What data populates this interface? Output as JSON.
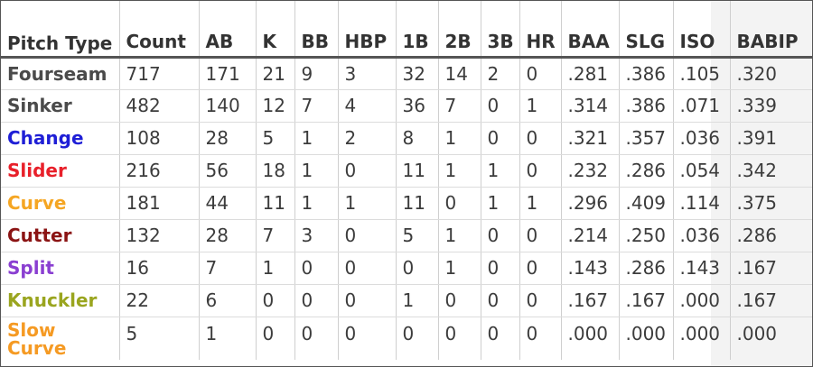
{
  "chart_data": {
    "type": "table",
    "columns": [
      "Pitch Type",
      "Count",
      "AB",
      "K",
      "BB",
      "HBP",
      "1B",
      "2B",
      "3B",
      "HR",
      "BAA",
      "SLG",
      "ISO",
      "BABIP"
    ],
    "rows": [
      {
        "pitch": "Fourseam",
        "color": "#4a4a4a",
        "values": [
          "717",
          "171",
          "21",
          "9",
          "3",
          "32",
          "14",
          "2",
          "0",
          ".281",
          ".386",
          ".105",
          ".320"
        ]
      },
      {
        "pitch": "Sinker",
        "color": "#4a4a4a",
        "values": [
          "482",
          "140",
          "12",
          "7",
          "4",
          "36",
          "7",
          "0",
          "1",
          ".314",
          ".386",
          ".071",
          ".339"
        ]
      },
      {
        "pitch": "Change",
        "color": "#1f1fd6",
        "values": [
          "108",
          "28",
          "5",
          "1",
          "2",
          "8",
          "1",
          "0",
          "0",
          ".321",
          ".357",
          ".036",
          ".391"
        ]
      },
      {
        "pitch": "Slider",
        "color": "#e8202a",
        "values": [
          "216",
          "56",
          "18",
          "1",
          "0",
          "11",
          "1",
          "1",
          "0",
          ".232",
          ".286",
          ".054",
          ".342"
        ]
      },
      {
        "pitch": "Curve",
        "color": "#f5a623",
        "values": [
          "181",
          "44",
          "11",
          "1",
          "1",
          "11",
          "0",
          "1",
          "1",
          ".296",
          ".409",
          ".114",
          ".375"
        ]
      },
      {
        "pitch": "Cutter",
        "color": "#8b1414",
        "values": [
          "132",
          "28",
          "7",
          "3",
          "0",
          "5",
          "1",
          "0",
          "0",
          ".214",
          ".250",
          ".036",
          ".286"
        ]
      },
      {
        "pitch": "Split",
        "color": "#8a3fd1",
        "values": [
          "16",
          "7",
          "1",
          "0",
          "0",
          "0",
          "1",
          "0",
          "0",
          ".143",
          ".286",
          ".143",
          ".167"
        ]
      },
      {
        "pitch": "Knuckler",
        "color": "#9aa51f",
        "values": [
          "22",
          "6",
          "0",
          "0",
          "0",
          "1",
          "0",
          "0",
          "0",
          ".167",
          ".167",
          ".000",
          ".167"
        ]
      },
      {
        "pitch": "Slow Curve",
        "color": "#f59a23",
        "values": [
          "5",
          "1",
          "0",
          "0",
          "0",
          "0",
          "0",
          "0",
          "0",
          ".000",
          ".000",
          ".000",
          ".000"
        ]
      }
    ]
  }
}
